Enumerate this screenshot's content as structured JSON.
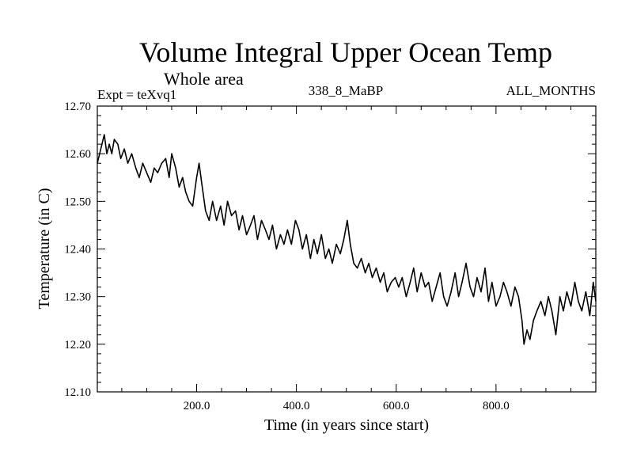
{
  "chart_data": {
    "type": "line",
    "title": "Volume Integral Upper Ocean Temp",
    "subtitle": "Whole area",
    "expt_label": "Expt = teXvq1",
    "run_label": "338_8_MaBP",
    "months_label": "ALL_MONTHS",
    "xlabel": "Time (in years since start)",
    "ylabel": "Temperature (in C)",
    "xlim": [
      1,
      1000
    ],
    "ylim": [
      12.1,
      12.7
    ],
    "x_ticks": [
      200,
      400,
      600,
      800
    ],
    "x_tick_labels": [
      "200.0",
      "400.0",
      "600.0",
      "800.0"
    ],
    "y_ticks": [
      12.1,
      12.2,
      12.3,
      12.4,
      12.5,
      12.6,
      12.7
    ],
    "y_tick_labels": [
      "12.10",
      "12.20",
      "12.30",
      "12.40",
      "12.50",
      "12.60",
      "12.70"
    ],
    "grid": false,
    "series": [
      {
        "name": "Volume integral upper ocean temperature",
        "x": [
          1,
          8,
          15,
          20,
          25,
          30,
          35,
          42,
          48,
          55,
          62,
          70,
          78,
          85,
          92,
          100,
          108,
          115,
          122,
          130,
          138,
          145,
          150,
          158,
          165,
          172,
          178,
          185,
          192,
          200,
          205,
          210,
          218,
          225,
          232,
          240,
          248,
          255,
          262,
          270,
          278,
          285,
          292,
          300,
          308,
          315,
          322,
          330,
          338,
          345,
          352,
          360,
          368,
          375,
          382,
          390,
          398,
          405,
          412,
          420,
          428,
          435,
          442,
          450,
          458,
          465,
          472,
          480,
          488,
          495,
          502,
          508,
          515,
          522,
          530,
          538,
          545,
          552,
          560,
          568,
          575,
          582,
          590,
          598,
          605,
          612,
          620,
          628,
          635,
          642,
          650,
          658,
          665,
          672,
          680,
          688,
          695,
          702,
          710,
          718,
          725,
          732,
          740,
          748,
          755,
          762,
          770,
          778,
          785,
          792,
          800,
          808,
          815,
          822,
          830,
          838,
          845,
          852,
          856,
          862,
          868,
          875,
          882,
          890,
          898,
          905,
          912,
          920,
          928,
          935,
          942,
          950,
          958,
          965,
          972,
          980,
          988,
          995,
          1000
        ],
        "values": [
          12.58,
          12.61,
          12.64,
          12.6,
          12.62,
          12.6,
          12.63,
          12.62,
          12.59,
          12.61,
          12.58,
          12.6,
          12.57,
          12.55,
          12.58,
          12.56,
          12.54,
          12.57,
          12.56,
          12.58,
          12.59,
          12.55,
          12.6,
          12.57,
          12.53,
          12.55,
          12.52,
          12.5,
          12.49,
          12.55,
          12.58,
          12.54,
          12.48,
          12.46,
          12.5,
          12.46,
          12.49,
          12.45,
          12.5,
          12.47,
          12.48,
          12.44,
          12.47,
          12.43,
          12.45,
          12.47,
          12.42,
          12.46,
          12.44,
          12.42,
          12.45,
          12.4,
          12.43,
          12.41,
          12.44,
          12.41,
          12.46,
          12.44,
          12.4,
          12.43,
          12.38,
          12.42,
          12.39,
          12.43,
          12.38,
          12.4,
          12.37,
          12.41,
          12.39,
          12.42,
          12.46,
          12.41,
          12.37,
          12.36,
          12.38,
          12.35,
          12.37,
          12.34,
          12.36,
          12.33,
          12.35,
          12.31,
          12.33,
          12.34,
          12.32,
          12.34,
          12.3,
          12.33,
          12.36,
          12.31,
          12.35,
          12.32,
          12.33,
          12.29,
          12.32,
          12.35,
          12.3,
          12.28,
          12.31,
          12.35,
          12.3,
          12.33,
          12.37,
          12.32,
          12.3,
          12.34,
          12.31,
          12.36,
          12.29,
          12.33,
          12.28,
          12.3,
          12.33,
          12.31,
          12.28,
          12.32,
          12.3,
          12.25,
          12.2,
          12.23,
          12.21,
          12.25,
          12.27,
          12.29,
          12.26,
          12.3,
          12.27,
          12.22,
          12.3,
          12.27,
          12.31,
          12.28,
          12.33,
          12.29,
          12.27,
          12.31,
          12.26,
          12.33,
          12.29
        ]
      }
    ]
  }
}
